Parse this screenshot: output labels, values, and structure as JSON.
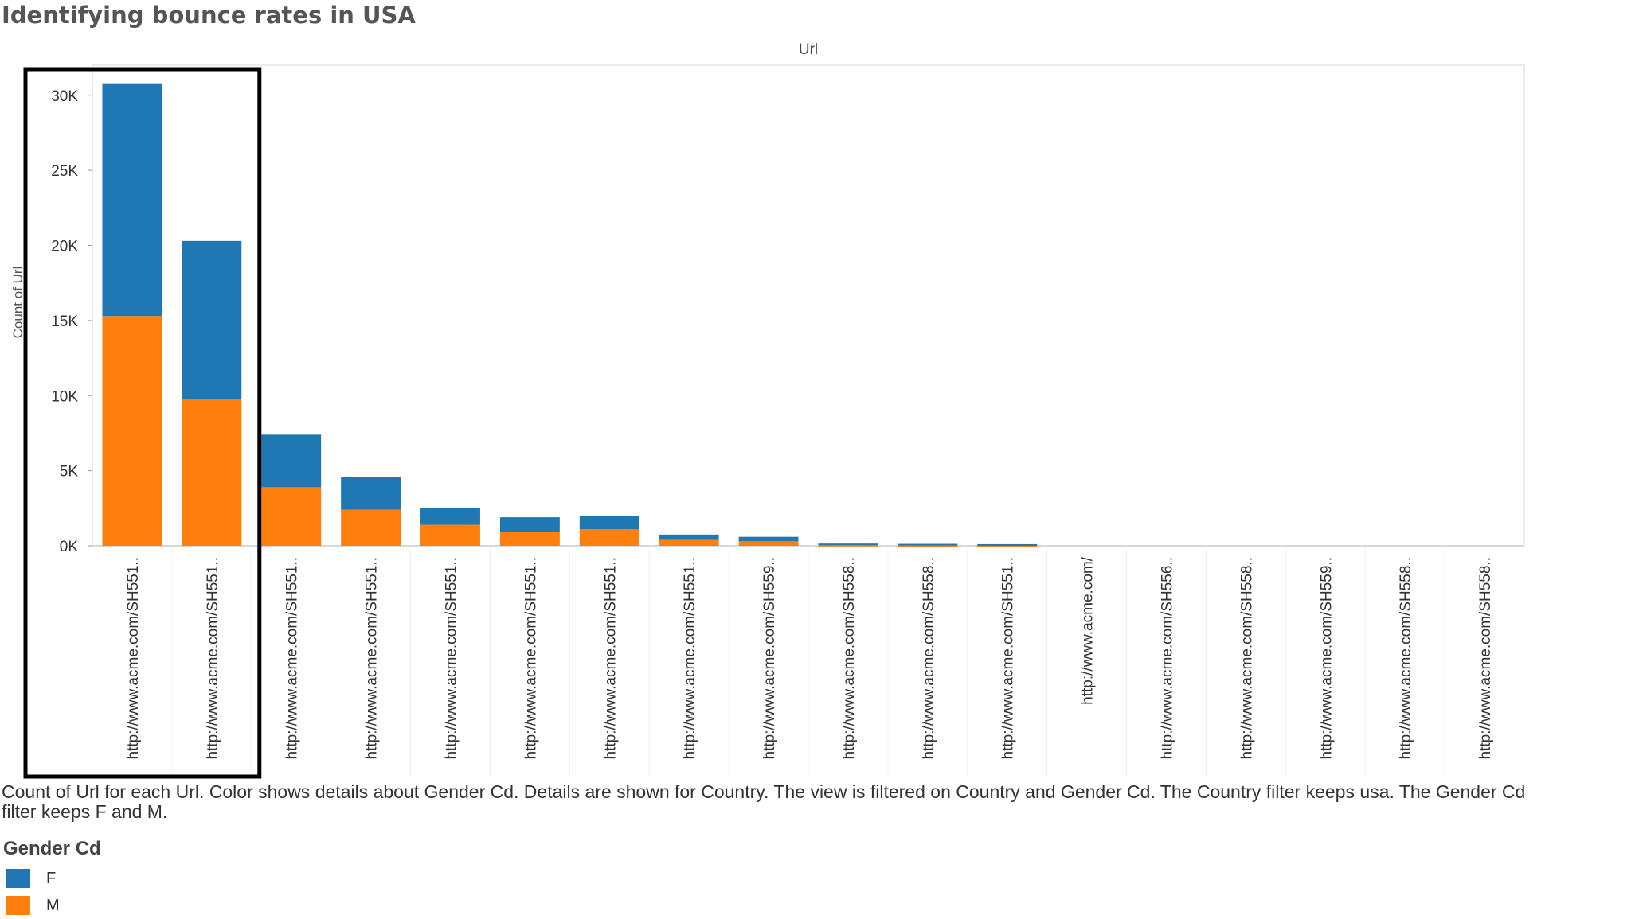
{
  "title": "Identifying bounce rates in USA",
  "chart_data": {
    "type": "bar",
    "stacked": true,
    "title": "Url",
    "xlabel": "Url",
    "ylabel": "Count of Url",
    "ylim": [
      0,
      32000
    ],
    "yticks": [
      0,
      5000,
      10000,
      15000,
      20000,
      25000,
      30000
    ],
    "ytick_labels": [
      "0K",
      "5K",
      "10K",
      "15K",
      "20K",
      "25K",
      "30K"
    ],
    "categories": [
      "http://www.acme.com/SH551..",
      "http://www.acme.com/SH551..",
      "http://www.acme.com/SH551..",
      "http://www.acme.com/SH551..",
      "http://www.acme.com/SH551..",
      "http://www.acme.com/SH551..",
      "http://www.acme.com/SH551..",
      "http://www.acme.com/SH551..",
      "http://www.acme.com/SH559..",
      "http://www.acme.com/SH558..",
      "http://www.acme.com/SH558..",
      "http://www.acme.com/SH551..",
      "http://www.acme.com/",
      "http://www.acme.com/SH556..",
      "http://www.acme.com/SH558..",
      "http://www.acme.com/SH559..",
      "http://www.acme.com/SH558..",
      "http://www.acme.com/SH558.."
    ],
    "series": [
      {
        "name": "M",
        "color": "#ff7f0e",
        "values": [
          15300,
          9800,
          3900,
          2400,
          1400,
          900,
          1100,
          400,
          300,
          60,
          50,
          40,
          0,
          0,
          0,
          0,
          0,
          0
        ]
      },
      {
        "name": "F",
        "color": "#1f77b4",
        "values": [
          15500,
          10500,
          3500,
          2200,
          1100,
          1000,
          900,
          350,
          300,
          90,
          80,
          70,
          0,
          0,
          0,
          0,
          0,
          0
        ]
      }
    ],
    "highlighted_categories": [
      0,
      1
    ]
  },
  "caption": "Count of Url for each Url.  Color shows details about Gender Cd.  Details are shown for Country. The view is filtered on Country and Gender Cd. The Country filter keeps usa. The Gender Cd filter keeps F and M.",
  "legend": {
    "title": "Gender Cd",
    "items": [
      {
        "label": "F",
        "color": "#1f77b4"
      },
      {
        "label": "M",
        "color": "#ff7f0e"
      }
    ]
  }
}
